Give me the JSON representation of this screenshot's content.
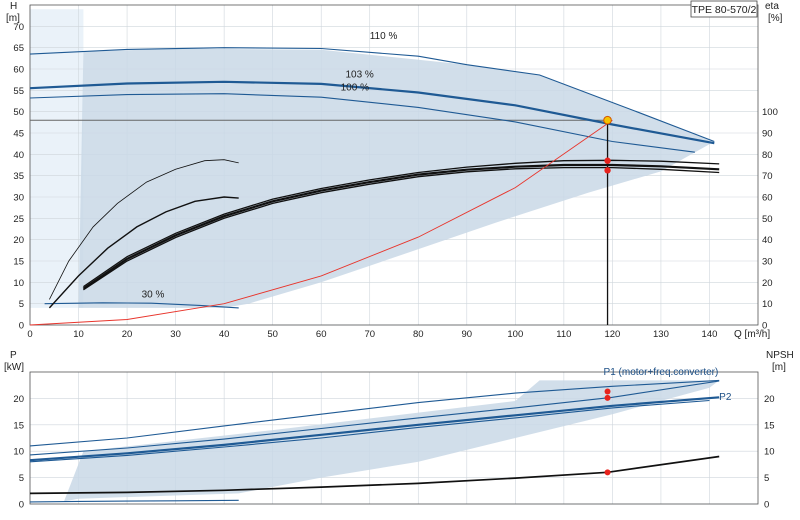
{
  "chart_data": [
    {
      "type": "line",
      "name": "head_efficiency",
      "title": "TPE 80-570/2",
      "xlabel": "Q [m³/h]",
      "ylabel_left_top": "H",
      "ylabel_left_unit": "[m]",
      "ylabel_right_top": "eta",
      "ylabel_right_unit": "[%]",
      "xlim": [
        0,
        150
      ],
      "ylim_left": [
        0,
        75
      ],
      "ylim_right": [
        0,
        100
      ],
      "x_ticks": [
        0,
        10,
        20,
        30,
        40,
        50,
        60,
        70,
        80,
        90,
        100,
        110,
        120,
        130,
        140
      ],
      "y_ticks_left": [
        0,
        5,
        10,
        15,
        20,
        25,
        30,
        35,
        40,
        45,
        50,
        55,
        60,
        65,
        70
      ],
      "y_ticks_right": [
        0,
        10,
        20,
        30,
        40,
        50,
        60,
        70,
        80,
        90,
        100
      ],
      "grid": true,
      "operating_region": [
        [
          11,
          64
        ],
        [
          30,
          64.8
        ],
        [
          60,
          64.5
        ],
        [
          90,
          61
        ],
        [
          105,
          58.6
        ],
        [
          125,
          50
        ],
        [
          141,
          43
        ],
        [
          130,
          36
        ],
        [
          115,
          31
        ],
        [
          96,
          24
        ],
        [
          78,
          17
        ],
        [
          60,
          10
        ],
        [
          45,
          5
        ],
        [
          40,
          4
        ],
        [
          10,
          4
        ]
      ],
      "speed_curves": [
        {
          "label": "110 %",
          "label_pos": [
            70,
            67
          ],
          "x": [
            0,
            20,
            40,
            60,
            80,
            90,
            105,
            125,
            141
          ],
          "y": [
            63.5,
            64.6,
            65,
            64.8,
            63,
            61,
            58.6,
            50,
            43
          ]
        },
        {
          "label": "103 %",
          "label_pos": [
            65,
            58
          ],
          "x": [
            0,
            20,
            40,
            60,
            80,
            100,
            120,
            141
          ],
          "y": [
            55.5,
            56.6,
            57,
            56.5,
            54.5,
            51.5,
            47,
            42.6
          ]
        },
        {
          "label": "100 %",
          "label_pos": [
            64,
            55
          ],
          "x": [
            0,
            20,
            40,
            60,
            80,
            100,
            120,
            137
          ],
          "y": [
            53.2,
            54,
            54.2,
            53.4,
            51,
            47.6,
            43,
            40.5
          ]
        },
        {
          "label": "30 %",
          "label_pos": [
            23,
            6.5
          ],
          "x": [
            3,
            15,
            25,
            35,
            43
          ],
          "y": [
            5,
            5.2,
            5.1,
            4.6,
            4
          ]
        }
      ],
      "efficiency_curves": [
        {
          "x": [
            4,
            8,
            13,
            18,
            24,
            30,
            36,
            40,
            43
          ],
          "y": [
            12,
            30,
            46,
            57,
            67,
            73,
            77,
            77.5,
            76
          ]
        },
        {
          "x": [
            4,
            10,
            16,
            22,
            28,
            34,
            40,
            43
          ],
          "y": [
            8,
            23,
            36,
            46,
            53,
            58,
            60,
            59.5
          ]
        },
        {
          "x": [
            11,
            20,
            30,
            40,
            50,
            60,
            70,
            80,
            90,
            100,
            110,
            120,
            130,
            142
          ],
          "y": [
            18,
            32,
            43,
            52,
            59,
            64,
            68,
            71.5,
            74,
            75.8,
            77,
            77.2,
            76.8,
            75.5
          ]
        },
        {
          "x": [
            11,
            20,
            30,
            40,
            50,
            60,
            70,
            80,
            90,
            100,
            110,
            120,
            130,
            142
          ],
          "y": [
            17,
            31,
            42,
            51,
            58,
            63,
            67,
            70.5,
            72.8,
            74.2,
            75,
            75,
            74.4,
            73
          ]
        },
        {
          "x": [
            11,
            20,
            30,
            40,
            50,
            60,
            70,
            80,
            90,
            100,
            110,
            120,
            130,
            142
          ],
          "y": [
            16.5,
            30,
            41,
            50,
            57,
            62,
            66,
            69.5,
            71.8,
            73.2,
            73.8,
            73.8,
            73,
            71.5
          ]
        }
      ],
      "system_curve": {
        "x": [
          0,
          20,
          40,
          60,
          80,
          100,
          120
        ],
        "y": [
          0,
          1.3,
          5,
          11.5,
          20.6,
          32.2,
          48
        ]
      },
      "duty_point": {
        "Q": 119,
        "H": 48
      },
      "duty_head_line_y": 48,
      "eta_markers": [
        77,
        72.5
      ]
    },
    {
      "type": "line",
      "name": "power_npsh",
      "ylabel_left_top": "P",
      "ylabel_left_unit": "[kW]",
      "ylabel_right_top": "NPSH",
      "ylabel_right_unit": "[m]",
      "xlim": [
        0,
        150
      ],
      "ylim": [
        0,
        25
      ],
      "y_ticks": [
        0,
        5,
        10,
        15,
        20
      ],
      "y_ticks_right": [
        0,
        5,
        10,
        15,
        20
      ],
      "grid": true,
      "operating_region": [
        [
          11,
          10
        ],
        [
          50,
          14
        ],
        [
          100,
          19.5
        ],
        [
          105,
          23.4
        ],
        [
          142,
          23.4
        ],
        [
          140,
          22
        ],
        [
          120,
          17
        ],
        [
          100,
          12.5
        ],
        [
          80,
          8
        ],
        [
          60,
          5
        ],
        [
          43,
          2
        ],
        [
          10,
          1
        ],
        [
          7,
          0.5
        ]
      ],
      "power_series": [
        {
          "name": "P1 (motor+freq.converter)",
          "name_pos": [
            130,
            24.4
          ],
          "x": [
            0,
            20,
            40,
            60,
            80,
            100,
            120,
            142
          ],
          "y": [
            11,
            12.5,
            14.8,
            17,
            19.2,
            21,
            22.3,
            23.4
          ]
        },
        {
          "name": "",
          "x": [
            0,
            20,
            40,
            60,
            80,
            100,
            120,
            142
          ],
          "y": [
            9.3,
            10.6,
            12.3,
            14.3,
            16.3,
            18.2,
            20.2,
            23.3
          ]
        },
        {
          "name": "",
          "x": [
            0,
            20,
            40,
            60,
            80,
            100,
            120,
            142
          ],
          "y": [
            8.3,
            9.6,
            11.2,
            13.1,
            15,
            16.8,
            18.6,
            20.2
          ]
        },
        {
          "name": "P2",
          "name_pos": [
            142,
            19.7
          ],
          "x": [
            0,
            20,
            40,
            60,
            80,
            100,
            120,
            140
          ],
          "y": [
            8,
            9.2,
            10.8,
            12.5,
            14.5,
            16.3,
            18.2,
            19.6
          ]
        },
        {
          "name": "",
          "x": [
            0,
            10,
            20,
            30,
            43
          ],
          "y": [
            0.4,
            0.5,
            0.55,
            0.6,
            0.7
          ]
        }
      ],
      "npsh_curve": {
        "x": [
          0,
          20,
          40,
          60,
          80,
          100,
          119,
          142
        ],
        "y": [
          2,
          2.2,
          2.6,
          3.2,
          3.9,
          4.9,
          6,
          9
        ]
      },
      "power_markers": [
        {
          "Q": 119,
          "P": 21.3
        },
        {
          "Q": 119,
          "P": 20.1
        }
      ],
      "npsh_marker": {
        "Q": 119,
        "NPSH": 6
      }
    }
  ]
}
